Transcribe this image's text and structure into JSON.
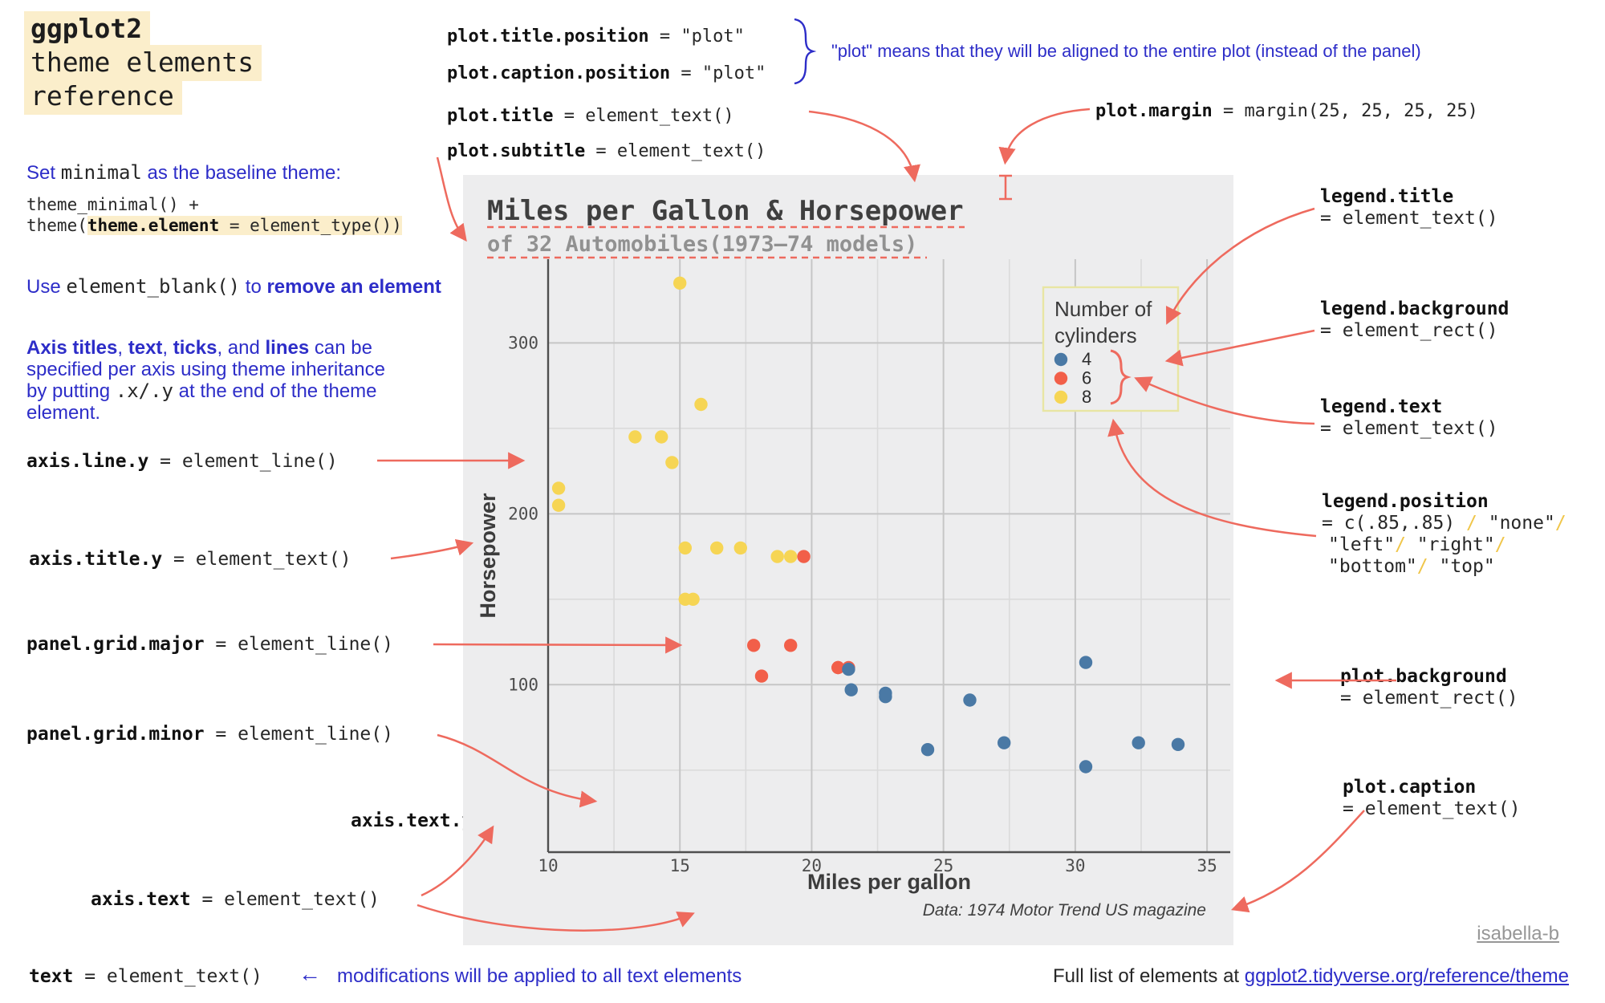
{
  "colors": {
    "accent_red": "#ee6a5e",
    "accent_blue": "#2d2dc8",
    "highlight": "#fbeecb",
    "plot_bg": "#ededee",
    "grid_major": "#c6c6c6",
    "grid_minor": "#dbdbdb",
    "axis": "#4f4f4f",
    "legend_border": "#e8e5a3",
    "dot_blue": "#4a79a5",
    "dot_red": "#f25f49",
    "dot_yellow": "#f6d554",
    "gray_link": "#979797"
  },
  "header": {
    "lines": [
      "ggplot2",
      "theme elements",
      "reference"
    ]
  },
  "sidebar": {
    "set_minimal": [
      {
        "t": "Set ",
        "c": "bl"
      },
      {
        "t": "minimal",
        "c": "m"
      },
      {
        "t": " as the baseline theme:",
        "c": "bl"
      }
    ],
    "code1": [
      {
        "t": "theme_minimal() +",
        "c": "m"
      }
    ],
    "code2": [
      {
        "t": "theme(",
        "c": "m"
      },
      {
        "t": "theme.element",
        "c": "mb hl"
      },
      {
        "t": " = element_type())",
        "c": "m hl"
      }
    ],
    "use_blank": [
      {
        "t": "Use ",
        "c": "bl"
      },
      {
        "t": "element_blank()",
        "c": "m"
      },
      {
        "t": " to ",
        "c": "bl"
      },
      {
        "t": "remove an element",
        "c": "blb"
      }
    ],
    "axis_para": [
      [
        {
          "t": "Axis titles",
          "c": "blb"
        },
        {
          "t": ", ",
          "c": "bl"
        },
        {
          "t": "text",
          "c": "blb"
        },
        {
          "t": ", ",
          "c": "bl"
        },
        {
          "t": "ticks",
          "c": "blb"
        },
        {
          "t": ", and ",
          "c": "bl"
        },
        {
          "t": "lines",
          "c": "blb"
        },
        {
          "t": " can be",
          "c": "bl"
        }
      ],
      [
        {
          "t": "specified per axis using theme inheritance",
          "c": "bl"
        }
      ],
      [
        {
          "t": "by putting ",
          "c": "bl"
        },
        {
          "t": ".x/.y",
          "c": "m"
        },
        {
          "t": " at the end of the theme",
          "c": "bl"
        }
      ],
      [
        {
          "t": "element.",
          "c": "bl"
        }
      ]
    ]
  },
  "labels": {
    "axis_line_y": [
      {
        "t": "axis.line.y",
        "c": "mb"
      },
      {
        "t": " = element_line()",
        "c": "m"
      }
    ],
    "axis_title_y": [
      {
        "t": "axis.title.y",
        "c": "mb"
      },
      {
        "t": " = element_text()",
        "c": "m"
      }
    ],
    "panel_grid_major": [
      {
        "t": "panel.grid.major",
        "c": "mb"
      },
      {
        "t": " = element_line()",
        "c": "m"
      }
    ],
    "panel_grid_minor": [
      {
        "t": "panel.grid.minor",
        "c": "mb"
      },
      {
        "t": " = element_line()",
        "c": "m"
      }
    ],
    "axis_text_y": [
      {
        "t": "axis.text.y",
        "c": "mb"
      }
    ],
    "axis_text_x": [
      {
        "t": "axis.text.x",
        "c": "mb"
      }
    ],
    "axis_text": [
      {
        "t": "axis.text",
        "c": "mb"
      },
      {
        "t": " = element_text()",
        "c": "m"
      }
    ],
    "plot_title_position": [
      {
        "t": "plot.title.position",
        "c": "mb"
      },
      {
        "t": " = \"plot\"",
        "c": "m"
      }
    ],
    "plot_caption_position": [
      {
        "t": "plot.caption.position",
        "c": "mb"
      },
      {
        "t": " = \"plot\"",
        "c": "m"
      }
    ],
    "align_note": "\"plot\" means that they will be aligned to the entire plot (instead of the panel)",
    "plot_title_code": [
      {
        "t": "plot.title",
        "c": "mb"
      },
      {
        "t": " = element_text()",
        "c": "m"
      }
    ],
    "plot_subtitle_code": [
      {
        "t": "plot.subtitle",
        "c": "mb"
      },
      {
        "t": " = element_text()",
        "c": "m"
      }
    ],
    "plot_margin": [
      {
        "t": "plot.margin",
        "c": "mb"
      },
      {
        "t": " = margin(25, 25, 25, 25)",
        "c": "m"
      }
    ],
    "legend_title_lines": [
      [
        {
          "t": "legend.title",
          "c": "mb"
        }
      ],
      [
        {
          "t": "= element_text()",
          "c": "m"
        }
      ]
    ],
    "legend_background_lines": [
      [
        {
          "t": "legend.background",
          "c": "mb"
        }
      ],
      [
        {
          "t": "= element_rect()",
          "c": "m"
        }
      ]
    ],
    "legend_text_lines": [
      [
        {
          "t": "legend.text",
          "c": "mb"
        }
      ],
      [
        {
          "t": "= element_text()",
          "c": "m"
        }
      ]
    ],
    "legend_position_lines": [
      [
        {
          "t": "legend.position",
          "c": "mb"
        }
      ],
      [
        {
          "t": "= c(.85,.85) ",
          "c": "m"
        },
        {
          "t": "/",
          "c": "m slash"
        },
        {
          "t": " \"none\"",
          "c": "m"
        },
        {
          "t": "/",
          "c": "m slash"
        }
      ],
      [
        {
          "t": " \"left\"",
          "c": "m"
        },
        {
          "t": "/",
          "c": "m slash"
        },
        {
          "t": " \"right\"",
          "c": "m"
        },
        {
          "t": "/",
          "c": "m slash"
        }
      ],
      [
        {
          "t": " \"bottom\"",
          "c": "m"
        },
        {
          "t": "/",
          "c": "m slash"
        },
        {
          "t": " \"top\"",
          "c": "m"
        }
      ]
    ],
    "plot_background_lines": [
      [
        {
          "t": "plot.background",
          "c": "mb"
        }
      ],
      [
        {
          "t": "= element_rect()",
          "c": "m"
        }
      ]
    ],
    "plot_caption_lines": [
      [
        {
          "t": "plot.caption",
          "c": "mb"
        }
      ],
      [
        {
          "t": "= element_text()",
          "c": "m"
        }
      ]
    ]
  },
  "footer": {
    "text_code": [
      {
        "t": "text",
        "c": "mb"
      },
      {
        "t": " = element_text()",
        "c": "m"
      }
    ],
    "arrow": "←",
    "note": "modifications will be applied to all text elements",
    "full_list_prefix": "Full list of elements at ",
    "full_list_link": "ggplot2.tidyverse.org/reference/theme",
    "credit": "isabella-b"
  },
  "chart_data": {
    "type": "scatter",
    "title": "Miles per Gallon & Horsepower",
    "subtitle": "of 32 Automobiles(1973–74 models)",
    "xlabel": "Miles per gallon",
    "ylabel": "Horsepower",
    "caption": "Data: 1974 Motor Trend US magazine",
    "axes": {
      "xlim": [
        10,
        35.88
      ],
      "ylim": [
        2,
        349
      ],
      "x_ticks": [
        10,
        15,
        20,
        25,
        30,
        35
      ],
      "y_ticks": [
        100,
        200,
        300
      ],
      "x_minor": [
        12.5,
        17.5,
        22.5,
        27.5,
        32.5
      ],
      "y_minor": [
        50,
        150,
        250
      ],
      "grid": true
    },
    "legend": {
      "title": "Number of cylinders",
      "title_lines": [
        "Number of",
        "cylinders"
      ],
      "position": "inside top-right c(.85,.85)",
      "entries": [
        {
          "label": "4",
          "color": "#4a79a5"
        },
        {
          "label": "6",
          "color": "#f25f49"
        },
        {
          "label": "8",
          "color": "#f6d554"
        }
      ]
    },
    "series": [
      {
        "name": "8",
        "color": "#f6d554",
        "points": [
          [
            18.7,
            175
          ],
          [
            14.3,
            245
          ],
          [
            16.4,
            180
          ],
          [
            17.3,
            180
          ],
          [
            15.2,
            180
          ],
          [
            10.4,
            205
          ],
          [
            10.4,
            215
          ],
          [
            14.7,
            230
          ],
          [
            15.5,
            150
          ],
          [
            15.2,
            150
          ],
          [
            13.3,
            245
          ],
          [
            19.2,
            175
          ],
          [
            15.8,
            264
          ],
          [
            15.0,
            335
          ]
        ]
      },
      {
        "name": "6",
        "color": "#f25f49",
        "points": [
          [
            21.0,
            110
          ],
          [
            21.0,
            110
          ],
          [
            21.4,
            110
          ],
          [
            18.1,
            105
          ],
          [
            19.2,
            123
          ],
          [
            17.8,
            123
          ],
          [
            19.7,
            175
          ]
        ]
      },
      {
        "name": "4",
        "color": "#4a79a5",
        "points": [
          [
            22.8,
            93
          ],
          [
            24.4,
            62
          ],
          [
            22.8,
            95
          ],
          [
            32.4,
            66
          ],
          [
            30.4,
            52
          ],
          [
            33.9,
            65
          ],
          [
            21.5,
            97
          ],
          [
            27.3,
            66
          ],
          [
            26.0,
            91
          ],
          [
            30.4,
            113
          ],
          [
            21.4,
            109
          ]
        ]
      }
    ]
  }
}
